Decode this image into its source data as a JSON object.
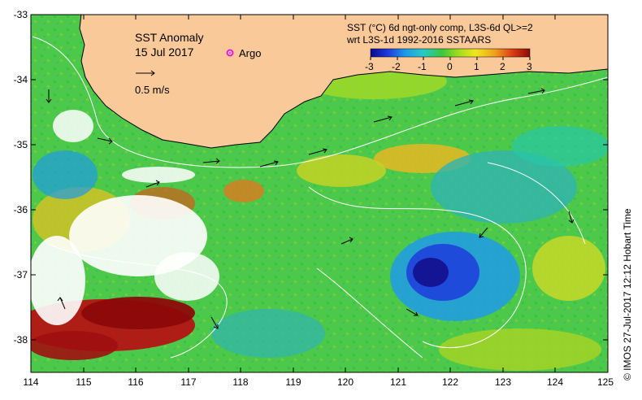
{
  "map": {
    "title": "SST Anomaly",
    "date": "15 Jul 2017",
    "argo_label": "Argo",
    "vector_scale_label": "0.5 m/s",
    "product_line1": "SST (°C) 6d ngt-only comp, L3S-6d QL>=2",
    "product_line2": "wrt L3S-1d 1992-2016 SSTAARS",
    "credit": "© IMOS 27-Jul-2017 12:12 Hobart Time",
    "colorbar": {
      "min": -3,
      "max": 3,
      "tick_labels": [
        "-3",
        "-2",
        "-1",
        "0",
        "1",
        "2",
        "3"
      ]
    },
    "lat_ticks": [
      "-33",
      "-34",
      "-35",
      "-36",
      "-37",
      "-38"
    ],
    "lon_ticks": [
      "114",
      "115",
      "116",
      "117",
      "118",
      "119",
      "120",
      "121",
      "122",
      "123",
      "124",
      "125"
    ],
    "colors": {
      "land": "#f9c99a",
      "colorbar_stops": [
        "#0a0a8c",
        "#1e3cdc",
        "#1e9be6",
        "#28c8c8",
        "#3cc83c",
        "#a0dc1e",
        "#f0e61e",
        "#f0a01e",
        "#dc3c14",
        "#8c0a0a"
      ],
      "argo": "#e619e6"
    }
  }
}
